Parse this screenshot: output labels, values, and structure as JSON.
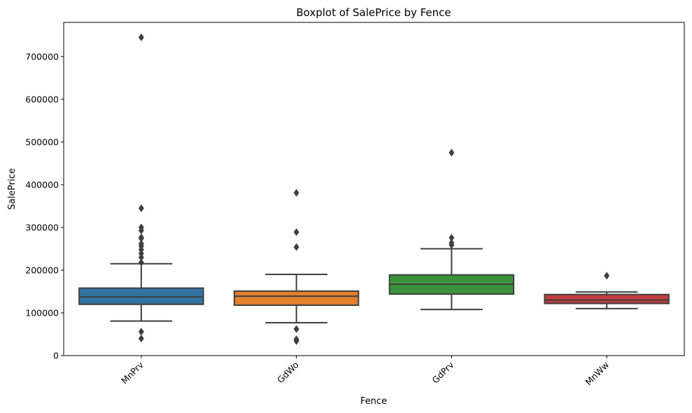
{
  "chart_data": {
    "type": "boxplot",
    "title": "Boxplot of SalePrice by Fence",
    "xlabel": "Fence",
    "ylabel": "SalePrice",
    "ylim": [
      0,
      780000
    ],
    "yticks": [
      0,
      100000,
      200000,
      300000,
      400000,
      500000,
      600000,
      700000
    ],
    "ytick_labels": [
      "0",
      "100000",
      "200000",
      "300000",
      "400000",
      "500000",
      "600000",
      "700000"
    ],
    "grid": false,
    "x_tick_rotation": 45,
    "categories": [
      "MnPrv",
      "GdWo",
      "GdPrv",
      "MnWw"
    ],
    "colors": [
      "#3274a1",
      "#e1812c",
      "#3a923a",
      "#c03d3e"
    ],
    "boxes": [
      {
        "category": "MnPrv",
        "whislo": 81000,
        "q1": 120000,
        "median": 137500,
        "q3": 158000,
        "whishi": 215000,
        "fliers": [
          745000,
          345000,
          300000,
          293000,
          277000,
          274000,
          262000,
          256000,
          248000,
          239000,
          230000,
          218000,
          56000,
          40000
        ]
      },
      {
        "category": "GdWo",
        "whislo": 77000,
        "q1": 118000,
        "median": 139000,
        "q3": 151000,
        "whishi": 190000,
        "fliers": [
          381000,
          289000,
          254000,
          62000,
          38000,
          34000
        ]
      },
      {
        "category": "GdPrv",
        "whislo": 108000,
        "q1": 144000,
        "median": 167000,
        "q3": 189000,
        "whishi": 250000,
        "fliers": [
          475000,
          276000,
          264000,
          259000
        ]
      },
      {
        "category": "MnWw",
        "whislo": 110000,
        "q1": 122000,
        "median": 130000,
        "q3": 143000,
        "whishi": 149000,
        "fliers": [
          187000
        ]
      }
    ]
  }
}
